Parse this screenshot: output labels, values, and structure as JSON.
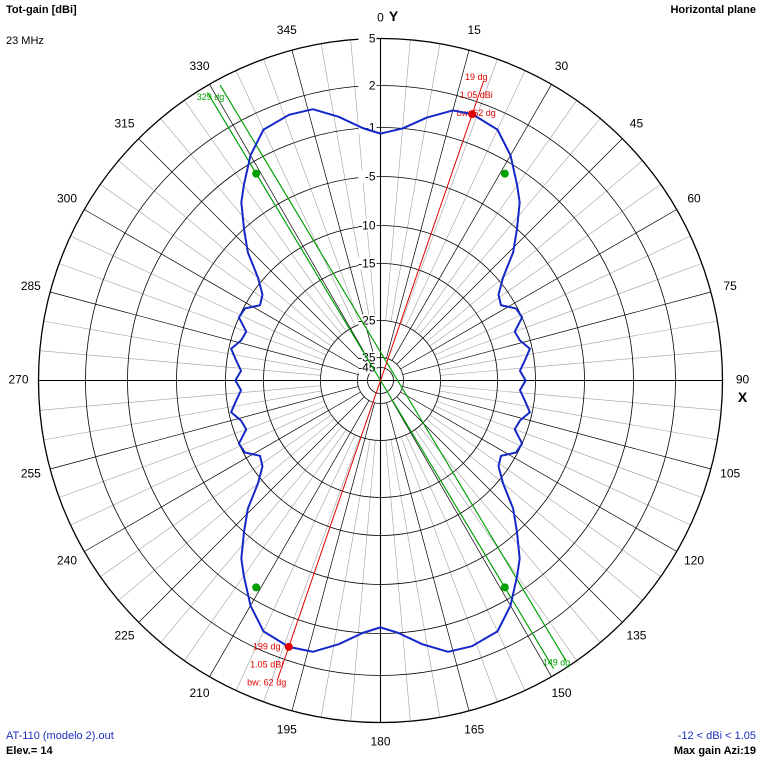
{
  "header": {
    "title": "Tot-gain [dBi]",
    "frequency": "23 MHz",
    "plane": "Horizontal plane"
  },
  "footer": {
    "filename": "AT-110 (modelo 2).out",
    "elevation": "Elev.= 14",
    "range": "-12 < dBi < 1.05",
    "max_gain": "Max gain Azi:19"
  },
  "colors": {
    "pattern": "#1428c8",
    "grid_dark": "#000000",
    "grid_light": "#a0a0a0",
    "max_gain": "#e00000",
    "beamwidth": "#00a000",
    "text_blue": "#1a2fbf"
  },
  "chart_data": {
    "type": "polar",
    "title": "Tot-gain [dBi]",
    "plane": "Horizontal plane",
    "frequency": "23 MHz",
    "axes": {
      "y_label": "Y",
      "x_label": "X"
    },
    "radial_unit": "dBi",
    "radial_ticks": [
      "5",
      "2",
      "-1",
      "-5",
      "-10",
      "-15",
      "-25",
      "-35",
      "-45"
    ],
    "angle_ticks": [
      "0",
      "15",
      "30",
      "45",
      "60",
      "75",
      "90",
      "105",
      "120",
      "135",
      "150",
      "165",
      "180",
      "195",
      "210",
      "225",
      "240",
      "255",
      "270",
      "285",
      "300",
      "315",
      "330",
      "345"
    ],
    "series": [
      {
        "azimuth_deg": [
          0,
          5,
          10,
          15,
          19,
          25,
          30,
          35,
          38,
          42,
          46,
          50,
          54,
          58,
          62,
          66,
          70,
          74,
          78,
          82,
          86,
          90,
          94,
          98,
          102,
          106,
          110,
          114,
          118,
          122,
          126,
          130,
          134,
          138,
          142,
          145,
          150,
          155,
          161,
          166,
          171,
          176,
          180,
          184,
          189,
          194,
          199,
          205,
          210,
          215,
          218,
          222,
          226,
          230,
          234,
          238,
          242,
          246,
          250,
          254,
          258,
          262,
          266,
          270,
          274,
          278,
          282,
          286,
          290,
          294,
          298,
          302,
          306,
          310,
          314,
          318,
          322,
          325,
          330,
          335,
          341,
          346,
          351,
          356,
          360
        ],
        "gain_dbi": [
          -1.5,
          -1.0,
          0.0,
          0.9,
          1.05,
          0.7,
          -0.5,
          -2.2,
          -3.2,
          -5.0,
          -7.0,
          -9.5,
          -11.2,
          -11.7,
          -10.2,
          -10.0,
          -11.6,
          -11.3,
          -10.3,
          -11.2,
          -12.0,
          -11.3,
          -12.0,
          -11.2,
          -10.3,
          -11.3,
          -11.6,
          -10.0,
          -10.2,
          -11.7,
          -11.2,
          -9.5,
          -7.0,
          -5.0,
          -3.2,
          -2.2,
          -0.5,
          0.7,
          1.0,
          0.9,
          0.0,
          -1.0,
          -1.5,
          -1.0,
          0.0,
          0.9,
          1.05,
          0.7,
          -0.5,
          -2.2,
          -3.2,
          -5.0,
          -7.0,
          -9.5,
          -11.2,
          -11.7,
          -10.2,
          -10.0,
          -11.6,
          -11.3,
          -10.3,
          -11.2,
          -12.0,
          -11.3,
          -12.0,
          -11.2,
          -10.3,
          -11.3,
          -11.6,
          -10.0,
          -10.2,
          -11.7,
          -11.2,
          -9.5,
          -7.0,
          -5.0,
          -3.2,
          -2.2,
          -0.5,
          0.7,
          1.0,
          0.9,
          0.0,
          -1.0,
          -1.5
        ]
      }
    ],
    "max_gain": {
      "azimuth_deg": 19,
      "gain_dbi": 1.05
    },
    "markers": {
      "max_gain_lines": [
        {
          "azimuth_deg": 19,
          "labels": [
            "19 dg",
            "1.05 dBi",
            "bw: 62 dg"
          ]
        },
        {
          "azimuth_deg": 199,
          "labels": [
            "199 dg",
            "1.05 dBi",
            "bw: 62 dg"
          ]
        }
      ],
      "beamwidth_lines": [
        {
          "azimuth_deg": 329,
          "label": "329 dg"
        },
        {
          "azimuth_deg": 149,
          "label": "149 dg"
        }
      ],
      "beamwidth_points_deg": [
        329,
        31,
        149,
        211
      ],
      "beamwidth_gain_dbi": -1.95
    },
    "elevation": "Elev.= 14",
    "gain_range": "-12 < dBi < 1.05"
  }
}
